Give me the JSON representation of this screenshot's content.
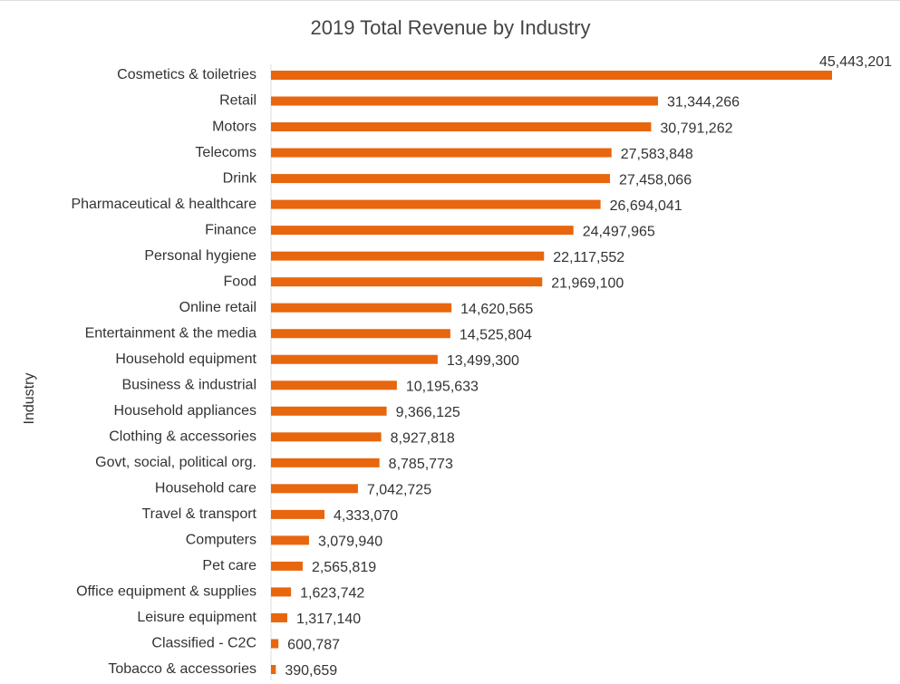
{
  "chart_data": {
    "type": "bar",
    "orientation": "horizontal",
    "title": "2019 Total Revenue by Industry",
    "y_label": "Industry",
    "color": "#e8660d",
    "categories": [
      "Cosmetics & toiletries",
      "Retail",
      "Motors",
      "Telecoms",
      "Drink",
      "Pharmaceutical & healthcare",
      "Finance",
      "Personal hygiene",
      "Food",
      "Online retail",
      "Entertainment & the media",
      "Household equipment",
      "Business & industrial",
      "Household appliances",
      "Clothing & accessories",
      "Govt, social, political org.",
      "Household care",
      "Travel & transport",
      "Computers",
      "Pet care",
      "Office equipment & supplies",
      "Leisure equipment",
      "Classified - C2C",
      "Tobacco & accessories"
    ],
    "values": [
      45443201,
      31344266,
      30791262,
      27583848,
      27458066,
      26694041,
      24497965,
      22117552,
      21969100,
      14620565,
      14525804,
      13499300,
      10195633,
      9366125,
      8927818,
      8785773,
      7042725,
      4333070,
      3079940,
      2565819,
      1623742,
      1317140,
      600787,
      390659
    ],
    "value_labels": [
      "45,443,201",
      "31,344,266",
      "30,791,262",
      "27,583,848",
      "27,458,066",
      "26,694,041",
      "24,497,965",
      "22,117,552",
      "21,969,100",
      "14,620,565",
      "14,525,804",
      "13,499,300",
      "10,195,633",
      "9,366,125",
      "8,927,818",
      "8,785,773",
      "7,042,725",
      "4,333,070",
      "3,079,940",
      "2,565,819",
      "1,623,742",
      "1,317,140",
      "600,787",
      "390,659"
    ]
  }
}
